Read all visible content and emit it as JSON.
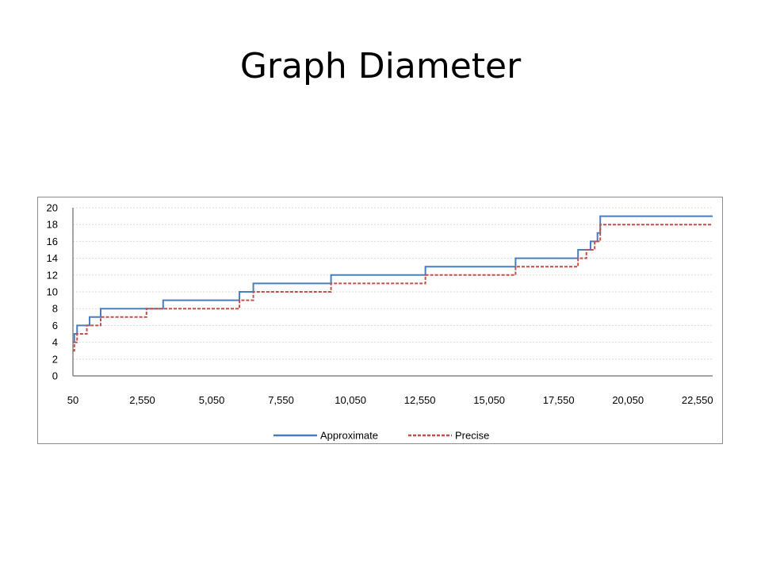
{
  "slide": {
    "title": "Graph Diameter"
  },
  "colors": {
    "approximate": "#4a7ebb",
    "precise": "#c0504d",
    "grid": "#d9d9d9",
    "axis": "#868686",
    "frame": "#8c8c8c"
  },
  "chart_data": {
    "type": "line",
    "title": "",
    "xlabel": "",
    "ylabel": "",
    "xlim": [
      50,
      23100
    ],
    "ylim": [
      0,
      20
    ],
    "y_ticks": [
      0,
      2,
      4,
      6,
      8,
      10,
      12,
      14,
      16,
      18,
      20
    ],
    "x_ticks": [
      50,
      2550,
      5050,
      7550,
      10050,
      12550,
      15050,
      17550,
      20050,
      22550
    ],
    "x_tick_labels": [
      "50",
      "2,550",
      "5,050",
      "7,550",
      "10,050",
      "12,550",
      "15,050",
      "17,550",
      "20,050",
      "22,550"
    ],
    "grid": "horizontal dashed",
    "legend_position": "bottom",
    "series": [
      {
        "name": "Approximate",
        "style": "solid",
        "step": true,
        "x": [
          50,
          100,
          200,
          650,
          1050,
          3300,
          6050,
          6550,
          9350,
          12750,
          16000,
          18250,
          18700,
          18950,
          19050,
          23100
        ],
        "y": [
          4,
          5,
          6,
          7,
          8,
          9,
          10,
          11,
          12,
          13,
          14,
          15,
          16,
          17,
          19,
          19
        ]
      },
      {
        "name": "Precise",
        "style": "dashed",
        "step": true,
        "x": [
          50,
          100,
          200,
          550,
          1050,
          2700,
          6050,
          6550,
          9350,
          12750,
          16000,
          18250,
          18550,
          18850,
          19050,
          23100
        ],
        "y": [
          3,
          4,
          5,
          6,
          7,
          8,
          9,
          10,
          11,
          12,
          13,
          14,
          15,
          16,
          18,
          18
        ]
      }
    ]
  }
}
